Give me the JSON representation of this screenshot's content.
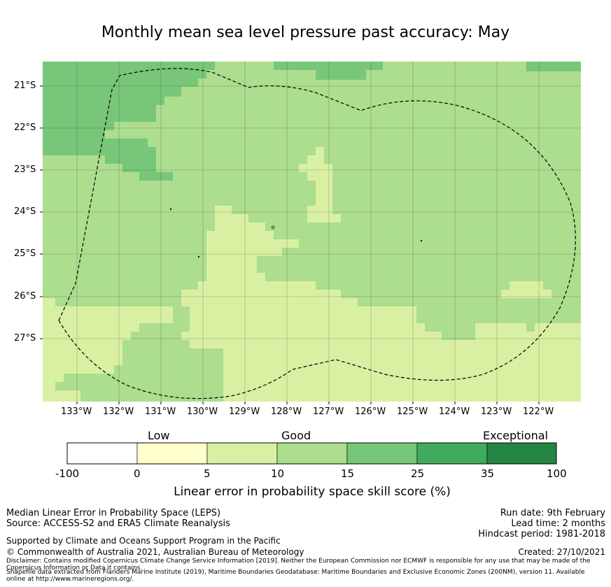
{
  "title": "Monthly mean sea level pressure past accuracy: May",
  "map": {
    "lat_labels": [
      "21°S",
      "22°S",
      "23°S",
      "24°S",
      "25°S",
      "26°S",
      "27°S"
    ],
    "lon_labels": [
      "133°W",
      "132°W",
      "131°W",
      "130°W",
      "129°W",
      "128°W",
      "127°W",
      "126°W",
      "125°W",
      "124°W",
      "123°W",
      "122°W"
    ],
    "region_outline": "dashed EEZ boundary"
  },
  "colorbar": {
    "categories": [
      "Low",
      "Good",
      "Exceptional"
    ],
    "ticks": [
      "-100",
      "0",
      "5",
      "10",
      "15",
      "25",
      "35",
      "100"
    ],
    "colors": [
      "#ffffff",
      "#ffffcc",
      "#d9f0a3",
      "#addd8e",
      "#78c679",
      "#41ab5d",
      "#238443"
    ],
    "label": "Linear error in probability space skill score (%)"
  },
  "footer": {
    "left_line1": "Median Linear Error in Probability Space (LEPS)",
    "left_line2": "Source: ACCESS-S2 and ERA5 Climate Reanalysis",
    "support": "Supported by Climate and Oceans Support Program in the Pacific",
    "copyright": "© Commonwealth of Australia 2021, Australian Bureau of Meteorology",
    "disclaimer1": "Disclaimer: Contains modified Copernicus Climate Change Service Information [2019]. Neither the European Commission nor ECMWF is responsible for any use that may be made of the",
    "disclaimer2": "Copernicus Information or Data it contains.",
    "shapefile1": "Shapefile data extracted from Flanders Marine Institute (2019), Maritime Boundaries Geodatabase: Maritime Boundaries and Exclusive Economic Zones (200NM), version 11. Available",
    "shapefile2": "online at http://www.marineregions.org/.",
    "run_date": "Run date: 9th February",
    "lead_time": "Lead time: 2 months",
    "hindcast": "Hindcast period: 1981-2018",
    "created": "Created: 27/10/2021"
  }
}
